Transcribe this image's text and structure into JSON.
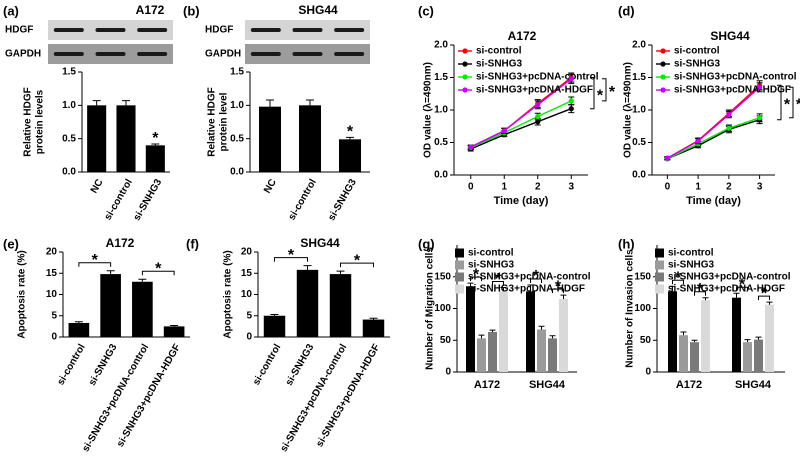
{
  "chart_data": [
    {
      "type": "bar",
      "panel_label": "(a)",
      "title": "A172",
      "blot_labels": [
        "HDGF",
        "GAPDH"
      ],
      "ylabel": [
        "Relative HDGF",
        "protein levels"
      ],
      "categories": [
        "NC",
        "si-control",
        "si-SNHG3"
      ],
      "values": [
        1.0,
        1.0,
        0.4
      ],
      "errors": [
        0.07,
        0.07,
        0.02
      ],
      "color": "#000000",
      "ylim": [
        0,
        1.5
      ],
      "yticks": [
        {
          "value": 0,
          "label": "0.0"
        },
        {
          "value": 0.5,
          "label": "0.5"
        },
        {
          "value": 1,
          "label": "1.0"
        },
        {
          "value": 1.5,
          "label": "1.5"
        }
      ],
      "annotations": [
        "*"
      ]
    },
    {
      "type": "bar",
      "panel_label": "(b)",
      "title": "SHG44",
      "blot_labels": [
        "HDGF",
        "GAPDH"
      ],
      "ylabel": [
        "Relative HDGF",
        "protein level"
      ],
      "categories": [
        "NC",
        "si-control",
        "si-SNHG3"
      ],
      "values": [
        0.98,
        1.0,
        0.49
      ],
      "errors": [
        0.1,
        0.08,
        0.03
      ],
      "color": "#000000",
      "ylim": [
        0,
        1.5
      ],
      "yticks": [
        {
          "value": 0,
          "label": "0.0"
        },
        {
          "value": 0.5,
          "label": "0.5"
        },
        {
          "value": 1,
          "label": "1.0"
        },
        {
          "value": 1.5,
          "label": "1.5"
        }
      ],
      "annotations": [
        "*"
      ]
    },
    {
      "type": "line",
      "panel_label": "(c)",
      "title": "A172",
      "xlabel": "Time (day)",
      "ylabel": "OD value (λ=490nm)",
      "x": [
        0,
        1,
        2,
        3
      ],
      "xlim": [
        -0.5,
        3.5
      ],
      "xticks": [
        0,
        1,
        2,
        3
      ],
      "ylim": [
        0,
        2
      ],
      "yticks": [
        {
          "value": 0,
          "label": "0.0"
        },
        {
          "value": 0.5,
          "label": "0.5"
        },
        {
          "value": 1,
          "label": "1.0"
        },
        {
          "value": 1.5,
          "label": "1.5"
        },
        {
          "value": 2,
          "label": "2.0"
        }
      ],
      "series": [
        {
          "name": "si-control",
          "color": "#ff0000",
          "values": [
            0.43,
            0.68,
            1.1,
            1.5
          ],
          "errors": [
            0.03,
            0.04,
            0.06,
            0.07
          ]
        },
        {
          "name": "si-SNHG3",
          "color": "#000000",
          "values": [
            0.4,
            0.62,
            0.82,
            1.02
          ],
          "errors": [
            0.03,
            0.03,
            0.05,
            0.06
          ]
        },
        {
          "name": "si-SNHG3+pcDNA-control",
          "color": "#00ee00",
          "values": [
            0.42,
            0.65,
            0.9,
            1.14
          ],
          "errors": [
            0.03,
            0.03,
            0.05,
            0.06
          ]
        },
        {
          "name": "si-SNHG3+pcDNA-HDGF",
          "color": "#cc00ff",
          "values": [
            0.43,
            0.68,
            1.08,
            1.48
          ],
          "errors": [
            0.03,
            0.04,
            0.06,
            0.07
          ]
        }
      ],
      "annotations": [
        "*",
        "*"
      ]
    },
    {
      "type": "line",
      "panel_label": "(d)",
      "title": "SHG44",
      "xlabel": "Time (day)",
      "ylabel": "OD value (λ=490nm)",
      "x": [
        0,
        1,
        2,
        3
      ],
      "xlim": [
        -0.5,
        3.5
      ],
      "xticks": [
        0,
        1,
        2,
        3
      ],
      "ylim": [
        0,
        2
      ],
      "yticks": [
        {
          "value": 0,
          "label": "0.0"
        },
        {
          "value": 0.5,
          "label": "0.5"
        },
        {
          "value": 1,
          "label": "1.0"
        },
        {
          "value": 1.5,
          "label": "1.5"
        },
        {
          "value": 2,
          "label": "2.0"
        }
      ],
      "series": [
        {
          "name": "si-control",
          "color": "#ff0000",
          "values": [
            0.26,
            0.53,
            0.95,
            1.38
          ],
          "errors": [
            0.02,
            0.04,
            0.05,
            0.07
          ]
        },
        {
          "name": "si-SNHG3",
          "color": "#000000",
          "values": [
            0.25,
            0.45,
            0.7,
            0.85
          ],
          "errors": [
            0.02,
            0.03,
            0.05,
            0.06
          ]
        },
        {
          "name": "si-SNHG3+pcDNA-control",
          "color": "#00ee00",
          "values": [
            0.25,
            0.48,
            0.72,
            0.88
          ],
          "errors": [
            0.02,
            0.03,
            0.05,
            0.06
          ]
        },
        {
          "name": "si-SNHG3+pcDNA-HDGF",
          "color": "#cc00ff",
          "values": [
            0.26,
            0.52,
            0.93,
            1.35
          ],
          "errors": [
            0.02,
            0.04,
            0.05,
            0.07
          ]
        }
      ],
      "annotations": [
        "*",
        "*"
      ]
    },
    {
      "type": "bar",
      "panel_label": "(e)",
      "title": "A172",
      "ylabel": "Apoptosis rate (%)",
      "categories": [
        "si-control",
        "si-SNHG3",
        "si-SNHG3+pcDNA-control",
        "si-SNHG3+pcDNA-HDGF"
      ],
      "values": [
        3.3,
        14.8,
        13.0,
        2.5
      ],
      "errors": [
        0.3,
        0.8,
        0.6,
        0.2
      ],
      "color": "#000000",
      "ylim": [
        0,
        20
      ],
      "yticks": [
        0,
        5,
        10,
        15,
        20
      ],
      "annotations": [
        "*",
        "*"
      ]
    },
    {
      "type": "bar",
      "panel_label": "(f)",
      "title": "SHG44",
      "ylabel": "Apoptosis rate (%)",
      "categories": [
        "si-control",
        "si-SNHG3",
        "si-SNHG3+pcDNA-control",
        "si-SNHG3+pcDNA-HDGF"
      ],
      "values": [
        5.0,
        15.8,
        14.8,
        4.1
      ],
      "errors": [
        0.3,
        1.0,
        0.7,
        0.3
      ],
      "color": "#000000",
      "ylim": [
        0,
        20
      ],
      "yticks": [
        0,
        5,
        10,
        15,
        20
      ],
      "annotations": [
        "*",
        "*"
      ]
    },
    {
      "type": "grouped_bar",
      "panel_label": "(g)",
      "ylabel": "Number of Migration cells",
      "categories": [
        "A172",
        "SHG44"
      ],
      "ylim": [
        0,
        200
      ],
      "yticks": [
        0,
        50,
        100,
        150
      ],
      "series": [
        {
          "name": "si-control",
          "color": "#000000",
          "values": [
            135,
            127
          ],
          "errors": [
            5,
            10
          ]
        },
        {
          "name": "si-SNHG3",
          "color": "#9a9a9a",
          "values": [
            53,
            67
          ],
          "errors": [
            5,
            5
          ]
        },
        {
          "name": "si-SNHG3+pcDNA-control",
          "color": "#7a7a7a",
          "values": [
            63,
            53
          ],
          "errors": [
            3,
            4
          ]
        },
        {
          "name": "si-SNHG3+pcDNA-HDGF",
          "color": "#d9d9d9",
          "values": [
            127,
            115
          ],
          "errors": [
            6,
            6
          ]
        }
      ],
      "annotations": [
        "*",
        "*",
        "*",
        "*"
      ]
    },
    {
      "type": "grouped_bar",
      "panel_label": "(h)",
      "ylabel": "Number of Invasion cells",
      "categories": [
        "A172",
        "SHG44"
      ],
      "ylim": [
        0,
        200
      ],
      "yticks": [
        0,
        50,
        100,
        150
      ],
      "series": [
        {
          "name": "si-control",
          "color": "#000000",
          "values": [
            127,
            117
          ],
          "errors": [
            8,
            7
          ]
        },
        {
          "name": "si-SNHG3",
          "color": "#9a9a9a",
          "values": [
            58,
            47
          ],
          "errors": [
            5,
            4
          ]
        },
        {
          "name": "si-SNHG3+pcDNA-control",
          "color": "#7a7a7a",
          "values": [
            47,
            51
          ],
          "errors": [
            3,
            4
          ]
        },
        {
          "name": "si-SNHG3+pcDNA-HDGF",
          "color": "#d9d9d9",
          "values": [
            113,
            106
          ],
          "errors": [
            4,
            4
          ]
        }
      ],
      "annotations": [
        "*",
        "*",
        "*",
        "*"
      ]
    }
  ]
}
